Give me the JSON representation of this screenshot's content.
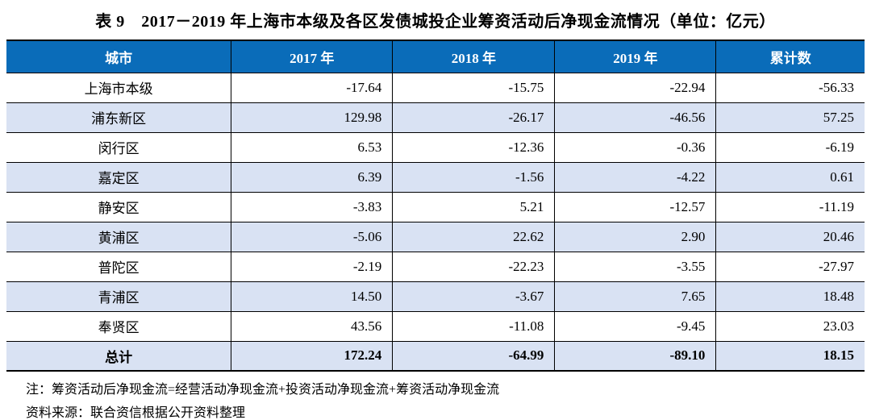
{
  "title": "表 9　2017－2019 年上海市本级及各区发债城投企业筹资活动后净现金流情况（单位：亿元）",
  "table": {
    "columns": [
      "城市",
      "2017 年",
      "2018 年",
      "2019 年",
      "累计数"
    ],
    "rows": [
      {
        "city": "上海市本级",
        "y2017": "-17.64",
        "y2018": "-15.75",
        "y2019": "-22.94",
        "cumulative": "-56.33"
      },
      {
        "city": "浦东新区",
        "y2017": "129.98",
        "y2018": "-26.17",
        "y2019": "-46.56",
        "cumulative": "57.25"
      },
      {
        "city": "闵行区",
        "y2017": "6.53",
        "y2018": "-12.36",
        "y2019": "-0.36",
        "cumulative": "-6.19"
      },
      {
        "city": "嘉定区",
        "y2017": "6.39",
        "y2018": "-1.56",
        "y2019": "-4.22",
        "cumulative": "0.61"
      },
      {
        "city": "静安区",
        "y2017": "-3.83",
        "y2018": "5.21",
        "y2019": "-12.57",
        "cumulative": "-11.19"
      },
      {
        "city": "黄浦区",
        "y2017": "-5.06",
        "y2018": "22.62",
        "y2019": "2.90",
        "cumulative": "20.46"
      },
      {
        "city": "普陀区",
        "y2017": "-2.19",
        "y2018": "-22.23",
        "y2019": "-3.55",
        "cumulative": "-27.97"
      },
      {
        "city": "青浦区",
        "y2017": "14.50",
        "y2018": "-3.67",
        "y2019": "7.65",
        "cumulative": "18.48"
      },
      {
        "city": "奉贤区",
        "y2017": "43.56",
        "y2018": "-11.08",
        "y2019": "-9.45",
        "cumulative": "23.03"
      }
    ],
    "total_row": {
      "city": "总计",
      "y2017": "172.24",
      "y2018": "-64.99",
      "y2019": "-89.10",
      "cumulative": "18.15"
    }
  },
  "notes": {
    "note": "注：筹资活动后净现金流=经营活动净现金流+投资活动净现金流+筹资活动净现金流",
    "source": "资料来源：联合资信根据公开资料整理"
  },
  "colors": {
    "header_bg": "#0a6cb9",
    "header_text": "#ffffff",
    "stripe_bg": "#d9e2f3",
    "border": "#000000"
  }
}
